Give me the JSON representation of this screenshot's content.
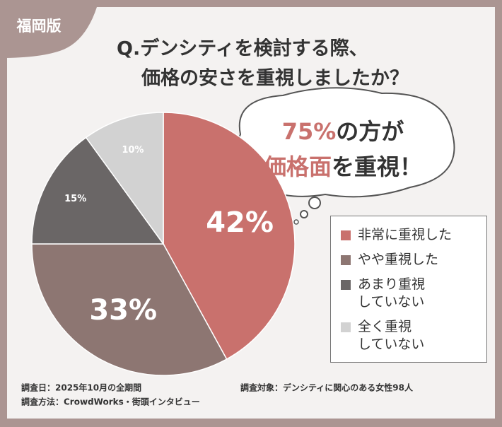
{
  "badge": "福岡版",
  "chart_data": {
    "type": "pie",
    "title": [
      "Q.デンシティを検討する際、",
      "価格の安さを重視しましたか？"
    ],
    "categories": [
      "非常に重視した",
      "やや重視した",
      "あまり重視\nしていない",
      "全く重視\nしていない"
    ],
    "values": [
      42,
      33,
      15,
      10
    ],
    "value_labels": [
      "42%",
      "33%",
      "15%",
      "10%"
    ],
    "colors": [
      "#c9716d",
      "#8d7672",
      "#6a6666",
      "#d2d2d2"
    ],
    "callout": [
      [
        "75%",
        "の方が"
      ],
      [
        "価格面",
        "を重視！"
      ]
    ],
    "callout_color": "#c9716d"
  },
  "notes": [
    "調査日：2025年10月の全期間",
    "調査方法：CrowdWorks・街頭インタビュー",
    "調査対象：デンシティに関心のある女性98人"
  ]
}
